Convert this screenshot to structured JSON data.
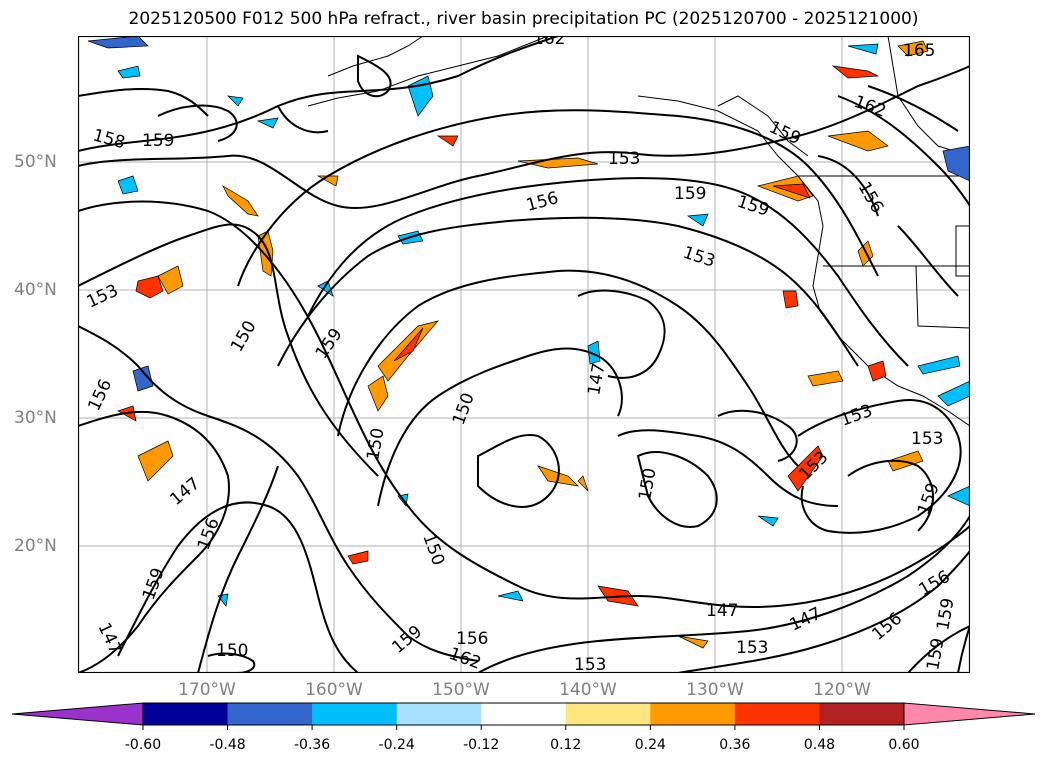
{
  "title": "2025120500 F012 500 hPa refract., river basin precipitation PC (2025120700 - 2025121000)",
  "lat_ticks": [
    "50°N",
    "40°N",
    "30°N",
    "20°N"
  ],
  "lon_ticks": [
    "170°W",
    "160°W",
    "150°W",
    "140°W",
    "130°W",
    "120°W"
  ],
  "contour_labels": {
    "c1": "162",
    "c2": "165",
    "c3": "162",
    "c4": "159",
    "c5": "158",
    "c6": "159",
    "c7": "153",
    "c8": "156",
    "c9": "159",
    "c10": "159",
    "c11": "153",
    "c12": "156",
    "c13": "153",
    "c14": "150",
    "c15": "159",
    "c16": "156",
    "c17": "147",
    "c18": "150",
    "c19": "150",
    "c20": "153",
    "c21": "153",
    "c22": "153",
    "c23": "150",
    "c24": "147",
    "c25": "156",
    "c26": "159",
    "c27": "150",
    "c28": "147",
    "c29": "147",
    "c30": "156",
    "c31": "159",
    "c32": "147",
    "c33": "150",
    "c34": "159",
    "c35": "156",
    "c36": "162",
    "c37": "153",
    "c38": "153",
    "c39": "156",
    "c40": "159",
    "c41": "159"
  },
  "colorbar": {
    "labels": [
      "-0.60",
      "-0.48",
      "-0.36",
      "-0.24",
      "-0.12",
      "0.12",
      "0.24",
      "0.36",
      "0.48",
      "0.60"
    ],
    "colors": [
      "#9933cc",
      "#000099",
      "#3366cc",
      "#00bfff",
      "#a6e0ff",
      "#ffffff",
      "#ffe680",
      "#ff9900",
      "#ff3300",
      "#b22222",
      "#ff88aa"
    ]
  }
}
